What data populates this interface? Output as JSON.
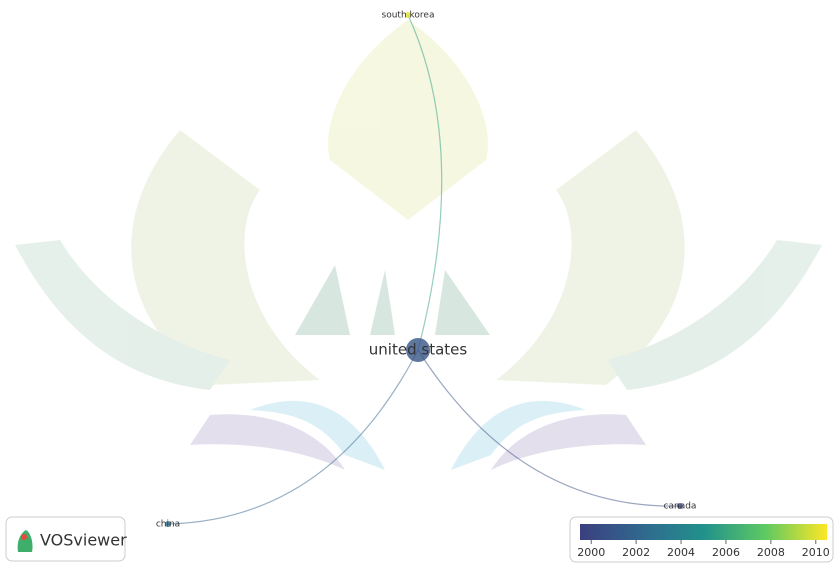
{
  "nodes": [
    {
      "label": "united states",
      "year": 2001
    },
    {
      "label": "south korea",
      "year": 2010
    },
    {
      "label": "china",
      "year": 2003
    },
    {
      "label": "canada",
      "year": 2000
    }
  ],
  "colorbar": {
    "lim": [
      1999.5,
      2010.5
    ],
    "ticks": [
      2000,
      2002,
      2004,
      2006,
      2008,
      2010
    ]
  },
  "logo": {
    "text": "VOSviewer"
  }
}
